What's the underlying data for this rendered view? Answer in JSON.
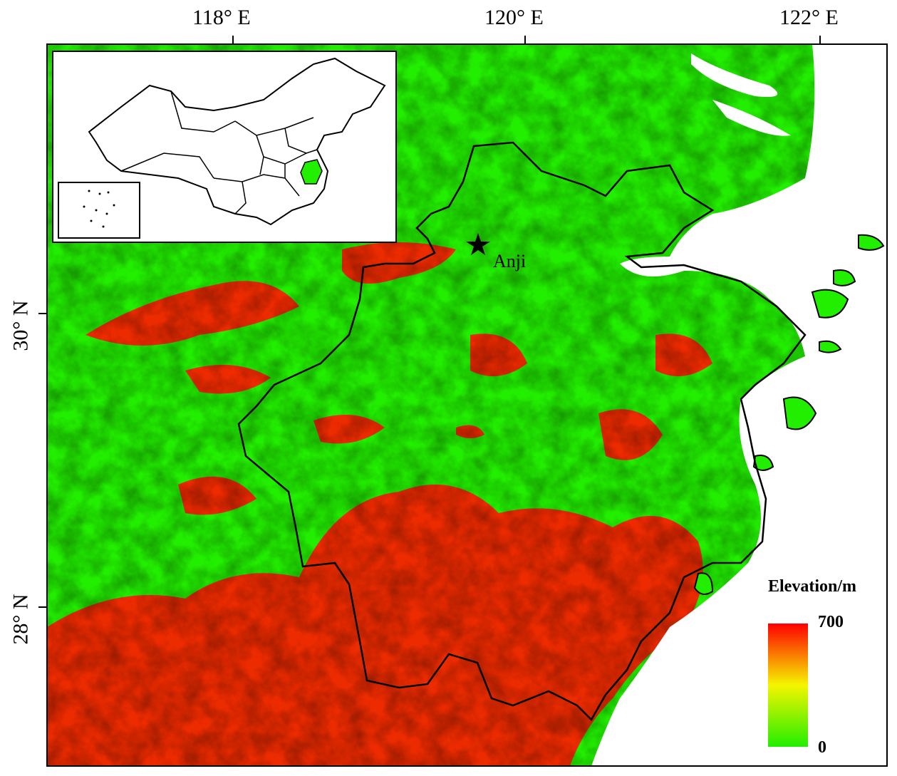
{
  "axes": {
    "top_ticks": [
      "118° E",
      "120° E",
      "122° E"
    ],
    "left_ticks": [
      "30° N",
      "28° N"
    ]
  },
  "place": {
    "name": "Anji",
    "marker": "star-icon"
  },
  "legend": {
    "title": "Elevation/m",
    "max": "700",
    "min": "0",
    "colors": {
      "high": "#ff0000",
      "mid": "#f5f500",
      "low": "#22ee00"
    }
  },
  "colors": {
    "lowland": "#22ee00",
    "highland": "#ff0000",
    "sea": "#ffffff",
    "border": "#000000",
    "inset_highlight": "#22ee00"
  }
}
